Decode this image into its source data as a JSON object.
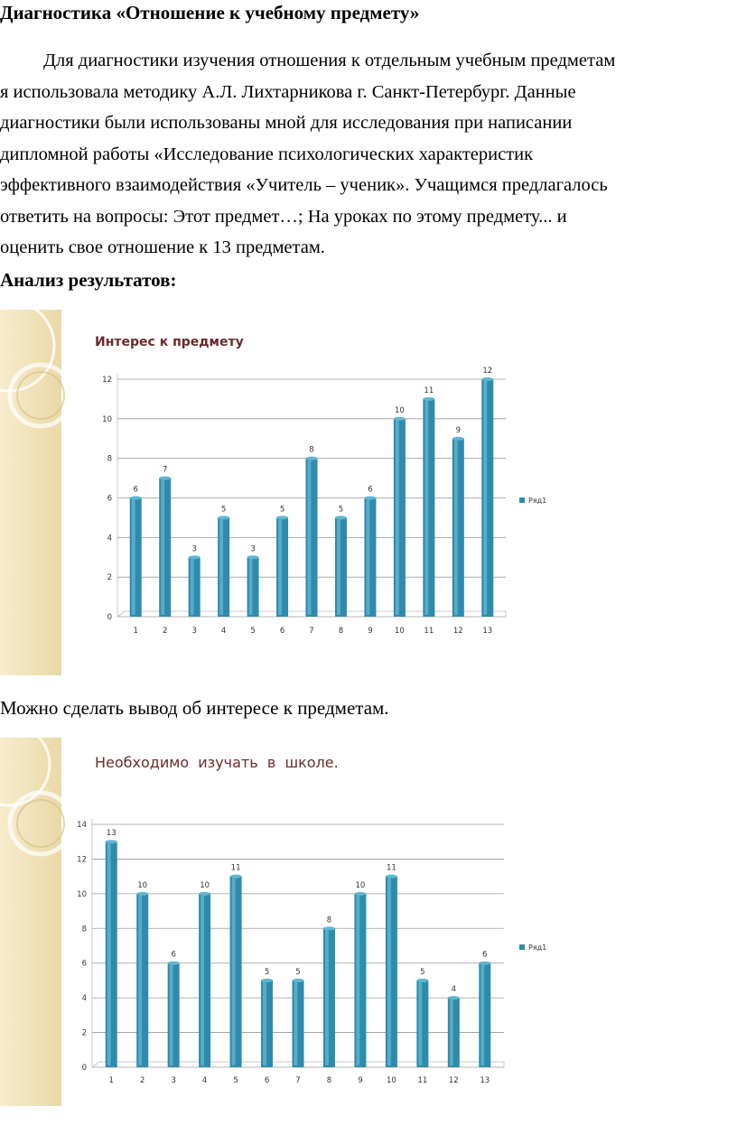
{
  "document": {
    "title": "Диагностика «Отношение к учебному предмету»",
    "paragraph_lines": [
      "Для диагностики изучения отношения к отдельным учебным предметам",
      "я использовала методику А.Л. Лихтарникова г. Санкт-Петербург. Данные",
      "диагностики были использованы мной для исследования при написании",
      "дипломной работы «Исследование психологических характеристик",
      "эффективного взаимодействия «Учитель – ученик». Учащимся предлагалось",
      "ответить на вопросы: Этот предмет…; На уроках по этому предмету... и",
      "оценить свое отношение к 13 предметам."
    ],
    "analysis_heading": "Анализ результатов:",
    "conclusion": "Можно сделать вывод об интересе к предметам."
  },
  "chart_data": [
    {
      "type": "bar",
      "title": "Интерес к предмету",
      "categories": [
        "1",
        "2",
        "3",
        "4",
        "5",
        "6",
        "7",
        "8",
        "9",
        "10",
        "11",
        "12",
        "13"
      ],
      "series": [
        {
          "name": "Ряд1",
          "values": [
            6,
            7,
            3,
            5,
            3,
            5,
            8,
            5,
            6,
            10,
            11,
            9,
            12
          ]
        }
      ],
      "yticks": [
        0,
        2,
        4,
        6,
        8,
        10,
        12
      ],
      "ylim": [
        0,
        12
      ],
      "grid": true,
      "legend": "right",
      "bar_color": "#2e8bab"
    },
    {
      "type": "bar",
      "title": "Необходимо  изучать  в  школе.",
      "categories": [
        "1",
        "2",
        "3",
        "4",
        "5",
        "6",
        "7",
        "8",
        "9",
        "10",
        "11",
        "12",
        "13"
      ],
      "series": [
        {
          "name": "Ряд1",
          "values": [
            13,
            10,
            6,
            10,
            11,
            5,
            5,
            8,
            10,
            11,
            5,
            4,
            6
          ]
        }
      ],
      "yticks": [
        0,
        2,
        4,
        6,
        8,
        10,
        12,
        14
      ],
      "ylim": [
        0,
        14
      ],
      "grid": true,
      "legend": "right",
      "bar_color": "#2e8bab"
    }
  ]
}
